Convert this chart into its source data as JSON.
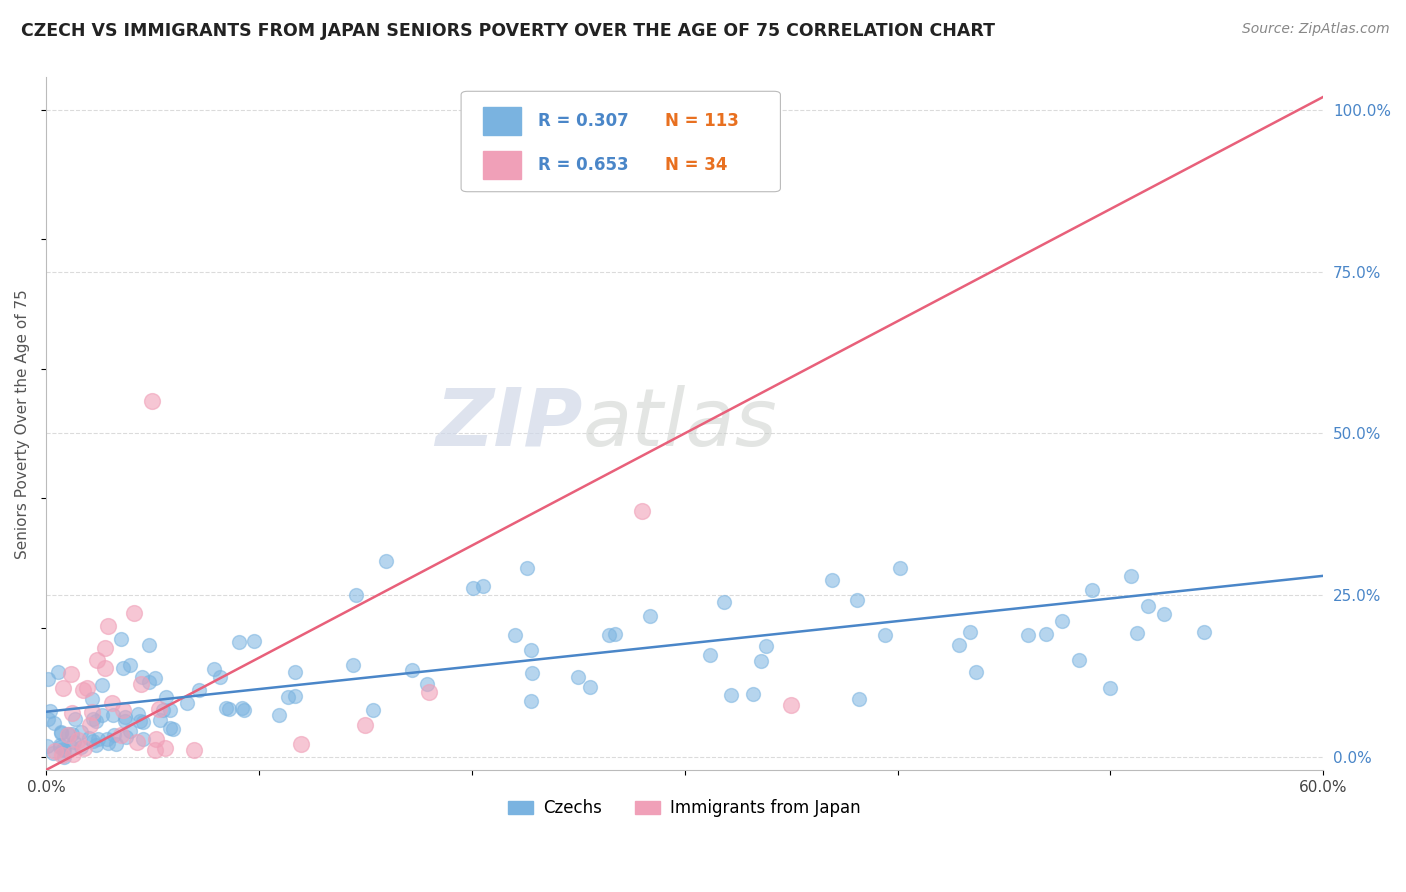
{
  "title": "CZECH VS IMMIGRANTS FROM JAPAN SENIORS POVERTY OVER THE AGE OF 75 CORRELATION CHART",
  "source": "Source: ZipAtlas.com",
  "ylabel": "Seniors Poverty Over the Age of 75",
  "xlim": [
    0.0,
    0.6
  ],
  "ylim": [
    -0.02,
    1.05
  ],
  "x_ticks": [
    0.0,
    0.1,
    0.2,
    0.3,
    0.4,
    0.5,
    0.6
  ],
  "x_tick_labels": [
    "0.0%",
    "",
    "",
    "",
    "",
    "",
    "60.0%"
  ],
  "y_ticks_right": [
    0.0,
    0.25,
    0.5,
    0.75,
    1.0
  ],
  "y_tick_labels_right": [
    "0.0%",
    "25.0%",
    "50.0%",
    "75.0%",
    "100.0%"
  ],
  "czechs_color": "#7ab3e0",
  "japan_color": "#f0a0b8",
  "czechs_line_color": "#4a86c8",
  "japan_line_color": "#e8607a",
  "legend_R_czechs": "R = 0.307",
  "legend_N_czechs": "N = 113",
  "legend_R_japan": "R = 0.653",
  "legend_N_japan": "N = 34",
  "legend_R_color": "#4a86c8",
  "legend_N_color": "#e87020",
  "watermark_zip": "ZIP",
  "watermark_atlas": "atlas",
  "background_color": "#ffffff",
  "grid_color": "#cccccc",
  "czechs_R": 0.307,
  "czechs_N": 113,
  "japan_R": 0.653,
  "japan_N": 34,
  "japan_line_x0": 0.0,
  "japan_line_y0": -0.02,
  "japan_line_x1": 0.6,
  "japan_line_y1": 1.02,
  "czech_line_x0": 0.0,
  "czech_line_y0": 0.07,
  "czech_line_x1": 0.6,
  "czech_line_y1": 0.28
}
